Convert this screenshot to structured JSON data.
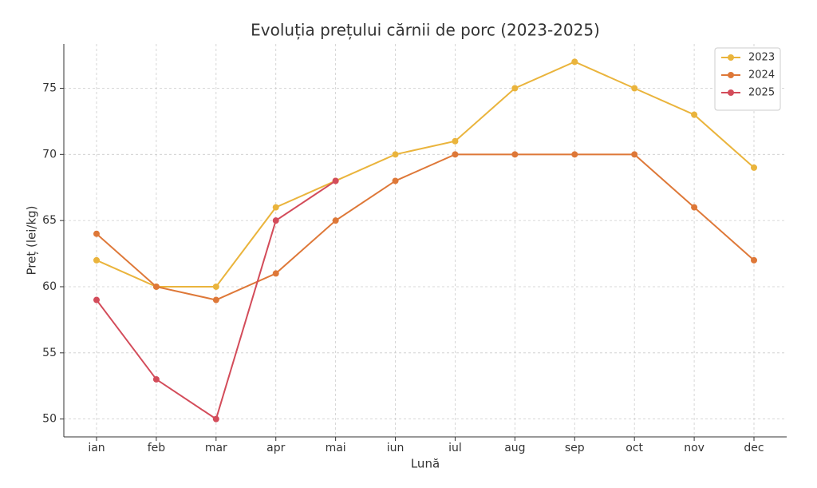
{
  "chart_data": {
    "type": "line",
    "title": "Evoluția prețului cărnii de porc (2023-2025)",
    "xlabel": "Lună",
    "ylabel": "Preț (lei/kg)",
    "categories": [
      "ian",
      "feb",
      "mar",
      "apr",
      "mai",
      "iun",
      "iul",
      "aug",
      "sep",
      "oct",
      "nov",
      "dec"
    ],
    "series": [
      {
        "name": "2023",
        "color": "#eab43c",
        "values": [
          62,
          60,
          60,
          66,
          68,
          70,
          71,
          75,
          77,
          75,
          73,
          69
        ]
      },
      {
        "name": "2024",
        "color": "#de7838",
        "values": [
          64,
          60,
          59,
          61,
          65,
          68,
          70,
          70,
          70,
          70,
          66,
          62
        ]
      },
      {
        "name": "2025",
        "color": "#d34c5a",
        "values": [
          59,
          53,
          50,
          65,
          68,
          null,
          null,
          null,
          null,
          null,
          null,
          null
        ]
      }
    ],
    "ylim": [
      48.65,
      78.35
    ],
    "yticks": [
      50,
      55,
      60,
      65,
      70,
      75
    ],
    "grid": true,
    "legend": "upper right"
  }
}
